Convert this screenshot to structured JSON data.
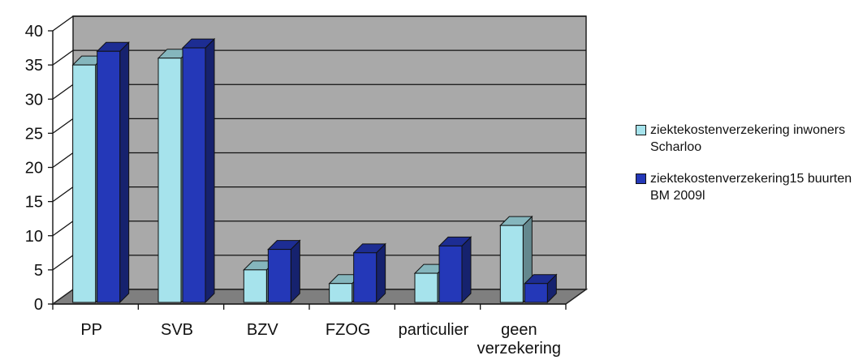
{
  "chart_data": {
    "type": "bar",
    "categories": [
      [
        "PP"
      ],
      [
        "SVB"
      ],
      [
        "BZV"
      ],
      [
        "FZOG"
      ],
      [
        "particulier"
      ],
      [
        "geen",
        "verzekering"
      ]
    ],
    "series": [
      {
        "name": "ziektekostenverzekering inwoners Scharloo",
        "name_lines": [
          "ziektekostenverzekering inwoners",
          "Scharloo"
        ],
        "color": "#a6e3ec",
        "values": [
          35,
          36,
          5,
          3,
          4.5,
          11.5
        ]
      },
      {
        "name": "ziektekostenverzekering15 buurten BM 2009l",
        "name_lines": [
          "ziektekostenverzekering15 buurten",
          "BM 2009l"
        ],
        "color": "#2438b8",
        "values": [
          37,
          37.5,
          8,
          7.5,
          8.5,
          3
        ]
      }
    ],
    "ylim": [
      0,
      40
    ],
    "yticks": [
      0,
      5,
      10,
      15,
      20,
      25,
      30,
      35,
      40
    ],
    "grid": true,
    "legend": "right",
    "title": "",
    "xlabel": "",
    "ylabel": ""
  }
}
